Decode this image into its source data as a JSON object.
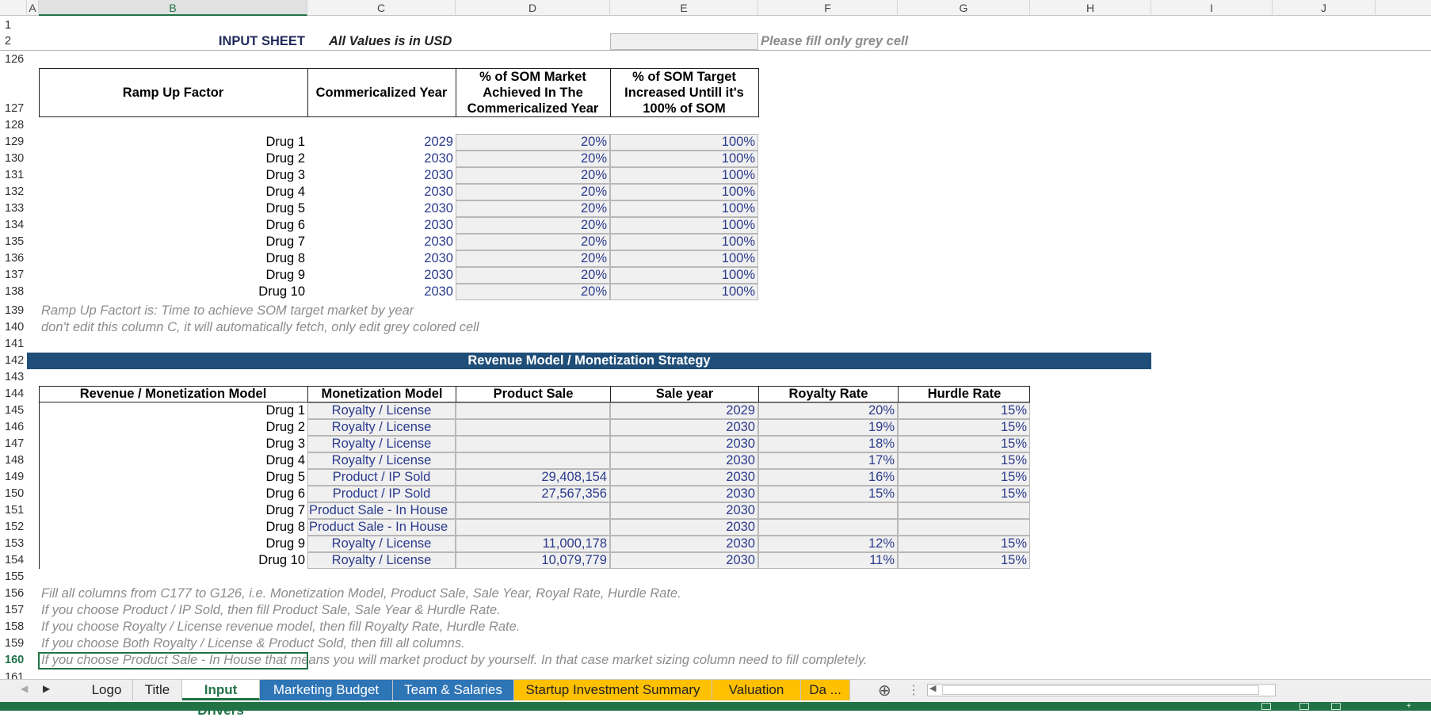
{
  "columns": [
    "A",
    "B",
    "C",
    "D",
    "E",
    "F",
    "G",
    "H",
    "I",
    "J"
  ],
  "rows_top": [
    "1",
    "2",
    "126",
    "127",
    "128"
  ],
  "header": {
    "title": "INPUT SHEET",
    "currency_note": "All Values is in USD",
    "fill_note": "Please fill only grey cell"
  },
  "rampup": {
    "headers": [
      "Ramp Up Factor",
      "Commericalized Year",
      "% of SOM Market Achieved In The Commericalized Year",
      "% of SOM Target Increased Untill it's 100% of SOM"
    ],
    "rows": [
      {
        "row": "129",
        "drug": "Drug 1",
        "year": "2029",
        "pct": "20%",
        "target": "100%"
      },
      {
        "row": "130",
        "drug": "Drug 2",
        "year": "2030",
        "pct": "20%",
        "target": "100%"
      },
      {
        "row": "131",
        "drug": "Drug 3",
        "year": "2030",
        "pct": "20%",
        "target": "100%"
      },
      {
        "row": "132",
        "drug": "Drug 4",
        "year": "2030",
        "pct": "20%",
        "target": "100%"
      },
      {
        "row": "133",
        "drug": "Drug 5",
        "year": "2030",
        "pct": "20%",
        "target": "100%"
      },
      {
        "row": "134",
        "drug": "Drug 6",
        "year": "2030",
        "pct": "20%",
        "target": "100%"
      },
      {
        "row": "135",
        "drug": "Drug 7",
        "year": "2030",
        "pct": "20%",
        "target": "100%"
      },
      {
        "row": "136",
        "drug": "Drug 8",
        "year": "2030",
        "pct": "20%",
        "target": "100%"
      },
      {
        "row": "137",
        "drug": "Drug 9",
        "year": "2030",
        "pct": "20%",
        "target": "100%"
      },
      {
        "row": "138",
        "drug": "Drug 10",
        "year": "2030",
        "pct": "20%",
        "target": "100%"
      }
    ],
    "notes": [
      {
        "row": "139",
        "text": "Ramp Up Factort is: Time to achieve SOM target market by year"
      },
      {
        "row": "140",
        "text": "don't edit this column C, it will automatically fetch, only edit grey colored cell"
      }
    ]
  },
  "revenue": {
    "banner": "Revenue Model / Monetization Strategy",
    "headers": [
      "Revenue / Monetization Model",
      "Monetization Model",
      "Product Sale",
      "Sale year",
      "Royalty Rate",
      "Hurdle Rate"
    ],
    "rows": [
      {
        "row": "145",
        "drug": "Drug 1",
        "model": "Royalty / License",
        "sale": "",
        "year": "2029",
        "royalty": "20%",
        "hurdle": "15%"
      },
      {
        "row": "146",
        "drug": "Drug 2",
        "model": "Royalty / License",
        "sale": "",
        "year": "2030",
        "royalty": "19%",
        "hurdle": "15%"
      },
      {
        "row": "147",
        "drug": "Drug 3",
        "model": "Royalty / License",
        "sale": "",
        "year": "2030",
        "royalty": "18%",
        "hurdle": "15%"
      },
      {
        "row": "148",
        "drug": "Drug 4",
        "model": "Royalty / License",
        "sale": "",
        "year": "2030",
        "royalty": "17%",
        "hurdle": "15%"
      },
      {
        "row": "149",
        "drug": "Drug 5",
        "model": "Product / IP Sold",
        "sale": "29,408,154",
        "year": "2030",
        "royalty": "16%",
        "hurdle": "15%"
      },
      {
        "row": "150",
        "drug": "Drug 6",
        "model": "Product / IP Sold",
        "sale": "27,567,356",
        "year": "2030",
        "royalty": "15%",
        "hurdle": "15%"
      },
      {
        "row": "151",
        "drug": "Drug 7",
        "model": "Product Sale - In House",
        "sale": "",
        "year": "2030",
        "royalty": "",
        "hurdle": ""
      },
      {
        "row": "152",
        "drug": "Drug 8",
        "model": "Product Sale - In House",
        "sale": "",
        "year": "2030",
        "royalty": "",
        "hurdle": ""
      },
      {
        "row": "153",
        "drug": "Drug 9",
        "model": "Royalty / License",
        "sale": "11,000,178",
        "year": "2030",
        "royalty": "12%",
        "hurdle": "15%"
      },
      {
        "row": "154",
        "drug": "Drug 10",
        "model": "Royalty / License",
        "sale": "10,079,779",
        "year": "2030",
        "royalty": "11%",
        "hurdle": "15%"
      }
    ],
    "notes": [
      {
        "row": "156",
        "text": "Fill all columns from C177 to G126, i.e. Monetization Model, Product Sale, Sale Year, Royal Rate, Hurdle Rate."
      },
      {
        "row": "157",
        "text": "If you choose Product / IP Sold, then fill Product Sale, Sale Year & Hurdle Rate."
      },
      {
        "row": "158",
        "text": "If you choose Royalty / License revenue model, then fill Royalty Rate, Hurdle Rate."
      },
      {
        "row": "159",
        "text": "If you choose Both Royalty / License & Product Sold, then fill all columns."
      },
      {
        "row": "160",
        "text": "If you choose Product Sale - In House that means you will market product by yourself. In that case market sizing column need to fill completely."
      }
    ]
  },
  "misc_rows": {
    "r141": "141",
    "r142": "142",
    "r143": "143",
    "r144": "144",
    "r155": "155",
    "r161": "161"
  },
  "tabs": [
    {
      "label": "Logo",
      "color": "#efefef",
      "text": "#222"
    },
    {
      "label": "Title",
      "color": "#efefef",
      "text": "#222"
    },
    {
      "label": "Input Drivers",
      "color": "#ffffff",
      "text": "#217346"
    },
    {
      "label": "Marketing Budget",
      "color": "#2e75b6",
      "text": "#ffffff"
    },
    {
      "label": "Team & Salaries",
      "color": "#2e75b6",
      "text": "#ffffff"
    },
    {
      "label": "Startup Investment Summary",
      "color": "#ffc000",
      "text": "#222"
    },
    {
      "label": "Valuation",
      "color": "#ffc000",
      "text": "#222"
    },
    {
      "label": "Da ...",
      "color": "#ffc000",
      "text": "#222"
    }
  ],
  "tab_controls": {
    "add": "⊕",
    "more": "⋮"
  },
  "colors": {
    "banner": "#1f4e79",
    "accent": "#217346",
    "grey_cell": "#f0f0f0"
  }
}
